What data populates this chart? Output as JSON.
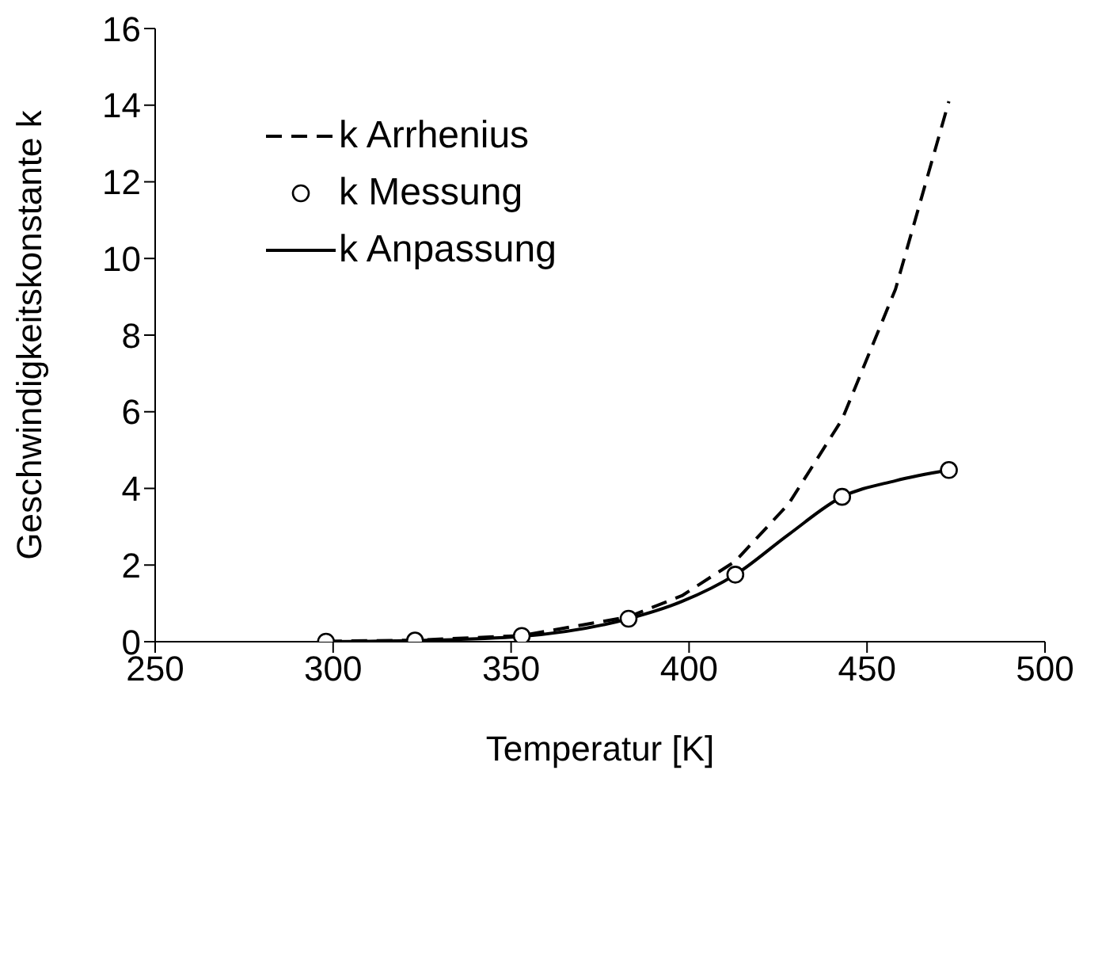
{
  "chart_data": {
    "type": "line",
    "xlabel": "Temperatur [K]",
    "ylabel": "Geschwindigkeitskonstante k",
    "xlim": [
      250,
      500
    ],
    "xticks": [
      250,
      300,
      350,
      400,
      450,
      500
    ],
    "ylim": [
      0,
      16
    ],
    "yticks": [
      0,
      2,
      4,
      6,
      8,
      10,
      12,
      14,
      16
    ],
    "grid": false,
    "legend": "top left",
    "series": [
      {
        "name": "k Arrhenius",
        "line_style": "dashed",
        "marker": "none",
        "color": "#000000",
        "x": [
          298,
          323,
          353,
          383,
          398,
          413,
          428,
          443,
          458,
          473
        ],
        "values": [
          0.01,
          0.04,
          0.16,
          0.65,
          1.2,
          2.1,
          3.6,
          5.8,
          9.2,
          14.1
        ]
      },
      {
        "name": "k Messung",
        "type": "scatter",
        "marker": "circle",
        "color": "#000000",
        "x": [
          298,
          323,
          353,
          383,
          413,
          443,
          473
        ],
        "values": [
          0,
          0.03,
          0.15,
          0.6,
          1.75,
          3.78,
          4.48
        ]
      },
      {
        "name": "k Anpassung",
        "line_style": "solid",
        "marker": "none",
        "color": "#000000",
        "x": [
          298,
          323,
          353,
          383,
          398,
          413,
          428,
          443,
          458,
          473
        ],
        "values": [
          0,
          0.03,
          0.14,
          0.6,
          1.05,
          1.75,
          2.8,
          3.78,
          4.2,
          4.48
        ]
      }
    ]
  }
}
